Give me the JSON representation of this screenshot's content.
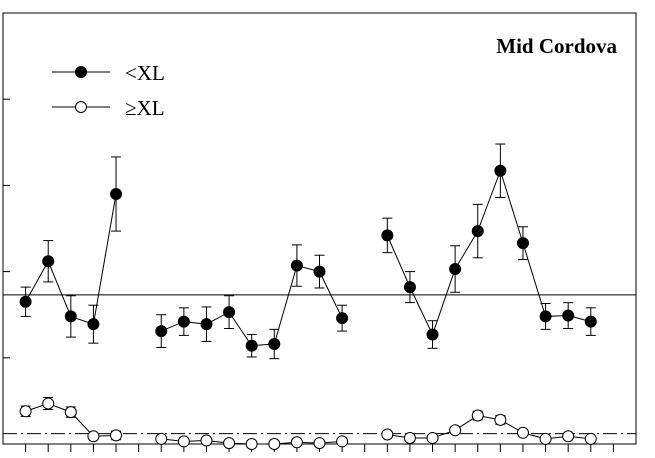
{
  "chart_data": {
    "type": "line",
    "title": "Mid Cordova",
    "xlabel": "",
    "ylabel": "",
    "ylim": [
      0,
      5
    ],
    "y_tick_values": [
      0,
      1,
      2,
      3,
      4,
      5
    ],
    "x_tick_count": 27,
    "grid": false,
    "legend_position": "top-left",
    "x": [
      1,
      2,
      3,
      4,
      5,
      7,
      8,
      9,
      10,
      11,
      12,
      13,
      14,
      15,
      17,
      18,
      19,
      20,
      21,
      22,
      23,
      24,
      25,
      26
    ],
    "segments": [
      [
        0,
        5
      ],
      [
        5,
        14
      ],
      [
        14,
        24
      ]
    ],
    "series": [
      {
        "name": "<XL",
        "marker": "filled-circle",
        "color": "#000000",
        "values": [
          1.65,
          2.12,
          1.48,
          1.39,
          2.9,
          1.31,
          1.42,
          1.39,
          1.53,
          1.14,
          1.16,
          2.07,
          2.0,
          1.46,
          2.42,
          1.82,
          1.27,
          2.03,
          2.47,
          3.17,
          2.33,
          1.48,
          1.49,
          1.42
        ],
        "err": [
          0.17,
          0.24,
          0.24,
          0.22,
          0.43,
          0.19,
          0.16,
          0.2,
          0.19,
          0.13,
          0.17,
          0.24,
          0.19,
          0.15,
          0.2,
          0.18,
          0.16,
          0.27,
          0.31,
          0.31,
          0.19,
          0.15,
          0.15,
          0.16
        ]
      },
      {
        "name": "≥XL",
        "marker": "open-circle",
        "color": "#000000",
        "values": [
          0.38,
          0.47,
          0.37,
          0.09,
          0.1,
          0.06,
          0.03,
          0.04,
          0.01,
          0.0,
          0.0,
          0.02,
          0.01,
          0.03,
          0.11,
          0.07,
          0.07,
          0.16,
          0.33,
          0.28,
          0.13,
          0.06,
          0.09,
          0.06
        ],
        "err": [
          0.06,
          0.07,
          0.06,
          0.03,
          0.05,
          0.02,
          0.02,
          0.02,
          0.01,
          0.0,
          0.0,
          0.02,
          0.01,
          0.02,
          0.02,
          0.02,
          0.02,
          0.03,
          0.05,
          0.05,
          0.03,
          0.02,
          0.02,
          0.02
        ]
      }
    ],
    "reference_lines": [
      {
        "y": 1.73,
        "style": "solid"
      },
      {
        "y": 0.12,
        "style": "dash-dot"
      }
    ]
  }
}
